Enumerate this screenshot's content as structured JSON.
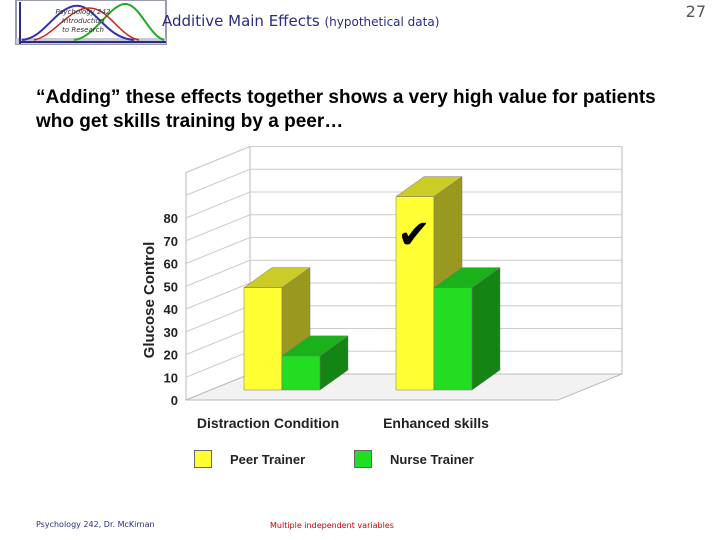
{
  "header": {
    "logo_text": [
      "Psychology 242",
      "Introduction",
      "to Research"
    ],
    "title_main": "Additive Main Effects",
    "title_sub": "(hypothetical data)",
    "slide_number": "27"
  },
  "headline": "“Adding” these effects together shows a very high value for patients who get skills training by a peer…",
  "footer": {
    "left": "Psychology 242, Dr. McKirnan",
    "middle": "Multiple independent variables"
  },
  "chart_data": {
    "type": "bar",
    "categories": [
      "Distraction Condition",
      "Enhanced skills"
    ],
    "series": [
      {
        "name": "Peer Trainer",
        "values": [
          45,
          85
        ],
        "color": "#ffff33"
      },
      {
        "name": "Nurse Trainer",
        "values": [
          15,
          45
        ],
        "color": "#22dd22"
      }
    ],
    "ylabel": "Glucose Control",
    "ylim": [
      0,
      80
    ],
    "yticks": [
      "0",
      "10",
      "20",
      "30",
      "40",
      "50",
      "60",
      "70",
      "80"
    ],
    "grid": true,
    "legend_position": "bottom",
    "annotation": "✔",
    "style": "3d"
  }
}
